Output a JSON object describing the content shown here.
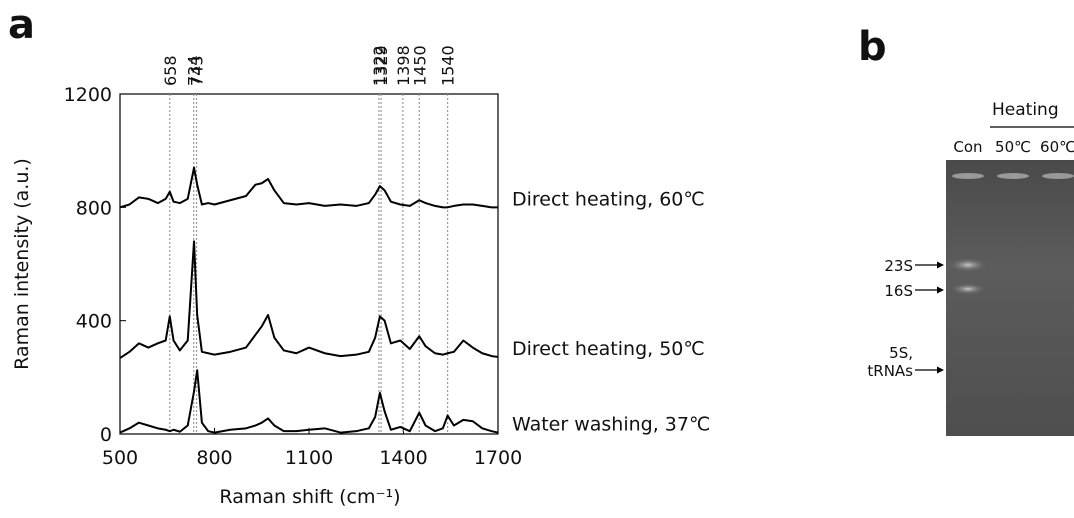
{
  "chart_data": {
    "type": "line",
    "panel": "a",
    "xlabel": "Raman shift (cm⁻¹)",
    "ylabel": "Raman intensity (a.u.)",
    "xlim": [
      500,
      1700
    ],
    "xticks": [
      500,
      800,
      1100,
      1400,
      1700
    ],
    "ylim": [
      0,
      1200
    ],
    "yticks": [
      0,
      400,
      800,
      1200
    ],
    "peaks": [
      658,
      734,
      743,
      1322,
      1329,
      1398,
      1450,
      1540
    ],
    "x": [
      500,
      530,
      560,
      590,
      620,
      645,
      658,
      670,
      690,
      715,
      735,
      745,
      760,
      780,
      800,
      850,
      900,
      930,
      950,
      970,
      990,
      1020,
      1060,
      1100,
      1150,
      1200,
      1250,
      1290,
      1310,
      1325,
      1340,
      1360,
      1390,
      1420,
      1450,
      1470,
      1500,
      1525,
      1540,
      1560,
      1590,
      1620,
      1650,
      1680,
      1700
    ],
    "series": [
      {
        "name": "Direct heating, 60℃",
        "color": "#000000",
        "values": [
          800,
          810,
          835,
          830,
          815,
          830,
          855,
          820,
          815,
          830,
          940,
          880,
          810,
          815,
          810,
          825,
          840,
          880,
          885,
          900,
          860,
          815,
          810,
          815,
          805,
          810,
          805,
          815,
          845,
          875,
          860,
          820,
          810,
          805,
          825,
          815,
          805,
          800,
          800,
          805,
          810,
          810,
          805,
          800,
          800
        ]
      },
      {
        "name": "Direct heating, 50℃",
        "color": "#000000",
        "values": [
          268,
          290,
          320,
          305,
          320,
          330,
          415,
          330,
          295,
          330,
          680,
          420,
          290,
          285,
          280,
          290,
          305,
          350,
          380,
          420,
          340,
          295,
          285,
          305,
          285,
          275,
          280,
          290,
          340,
          415,
          400,
          320,
          330,
          300,
          345,
          310,
          285,
          280,
          285,
          290,
          330,
          305,
          285,
          275,
          272
        ]
      },
      {
        "name": "Water washing, 37℃",
        "color": "#000000",
        "values": [
          5,
          20,
          40,
          30,
          20,
          15,
          10,
          15,
          8,
          30,
          150,
          225,
          40,
          10,
          5,
          15,
          20,
          30,
          40,
          55,
          30,
          10,
          10,
          15,
          20,
          5,
          10,
          20,
          60,
          145,
          80,
          15,
          25,
          10,
          75,
          30,
          10,
          20,
          65,
          30,
          50,
          45,
          20,
          10,
          5
        ]
      }
    ]
  },
  "gel": {
    "panel": "b",
    "header": "Heating",
    "lanes": [
      "Con",
      "50℃",
      "60℃"
    ],
    "bands": [
      [
        "23S"
      ],
      [
        "16S"
      ],
      [
        "5S,",
        "tRNAs"
      ]
    ]
  }
}
